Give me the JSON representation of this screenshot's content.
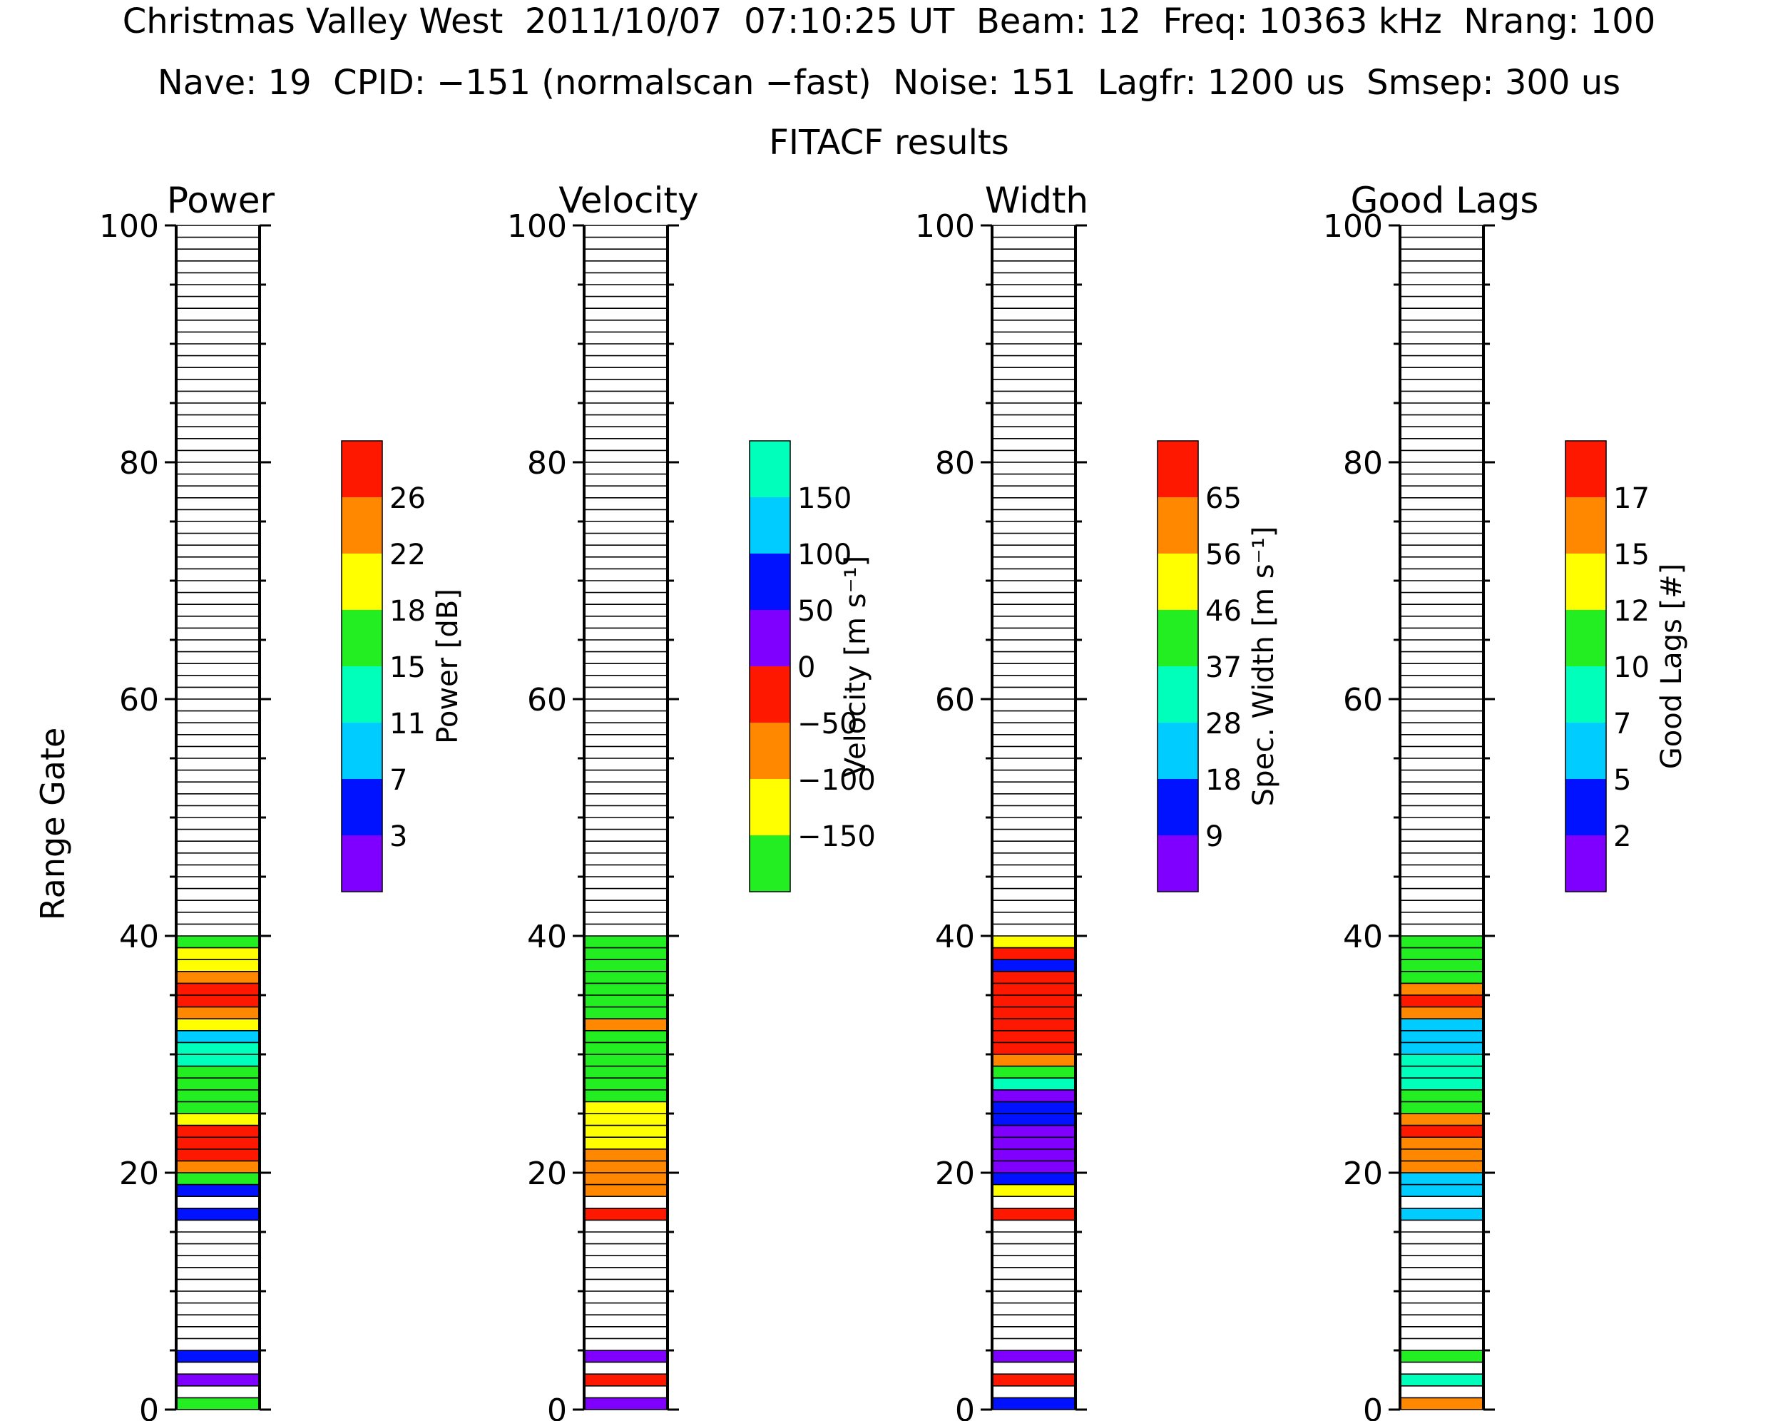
{
  "header": {
    "line1": "Christmas Valley West  2011/10/07  07:10:25 UT  Beam: 12  Freq: 10363 kHz  Nrang: 100",
    "line2": "Nave: 19  CPID: −151 (normalscan −fast)  Noise: 151  Lagfr: 1200 us  Smsep: 300 us",
    "line3": "FITACF results"
  },
  "y_axis_label": "Range Gate",
  "colors": {
    "purple": "#8000ff",
    "blue": "#0012ff",
    "cyan": "#00ccff",
    "teal": "#00ffbb",
    "green": "#22ee22",
    "yellow": "#ffff00",
    "orange": "#ff8800",
    "red": "#ff1800"
  },
  "chart_data": [
    {
      "type": "heatmap",
      "title": "Power",
      "ylabel": "Range Gate",
      "ylim": [
        0,
        100
      ],
      "yticks": [
        "0",
        "20",
        "40",
        "60",
        "80",
        "100"
      ],
      "colorbar": {
        "label": "Power [dB]",
        "colors": [
          "purple",
          "blue",
          "cyan",
          "teal",
          "green",
          "yellow",
          "orange",
          "red"
        ],
        "ticks": [
          "3",
          "7",
          "11",
          "15",
          "18",
          "22",
          "26"
        ]
      },
      "cells": [
        {
          "gate": 0,
          "color": "green"
        },
        {
          "gate": 2,
          "color": "purple"
        },
        {
          "gate": 4,
          "color": "blue"
        },
        {
          "gate": 16,
          "color": "blue"
        },
        {
          "gate": 18,
          "color": "blue"
        },
        {
          "gate": 19,
          "color": "green"
        },
        {
          "gate": 20,
          "color": "orange"
        },
        {
          "gate": 21,
          "color": "red"
        },
        {
          "gate": 22,
          "color": "red"
        },
        {
          "gate": 23,
          "color": "red"
        },
        {
          "gate": 24,
          "color": "yellow"
        },
        {
          "gate": 25,
          "color": "green"
        },
        {
          "gate": 26,
          "color": "green"
        },
        {
          "gate": 27,
          "color": "green"
        },
        {
          "gate": 28,
          "color": "green"
        },
        {
          "gate": 29,
          "color": "teal"
        },
        {
          "gate": 30,
          "color": "teal"
        },
        {
          "gate": 31,
          "color": "cyan"
        },
        {
          "gate": 32,
          "color": "yellow"
        },
        {
          "gate": 33,
          "color": "orange"
        },
        {
          "gate": 34,
          "color": "red"
        },
        {
          "gate": 35,
          "color": "red"
        },
        {
          "gate": 36,
          "color": "orange"
        },
        {
          "gate": 37,
          "color": "yellow"
        },
        {
          "gate": 38,
          "color": "yellow"
        },
        {
          "gate": 39,
          "color": "green"
        }
      ]
    },
    {
      "type": "heatmap",
      "title": "Velocity",
      "ylim": [
        0,
        100
      ],
      "yticks": [
        "0",
        "20",
        "40",
        "60",
        "80",
        "100"
      ],
      "colorbar": {
        "label": "Velocity [m s⁻¹]",
        "colors": [
          "green",
          "yellow",
          "orange",
          "red",
          "purple",
          "blue",
          "cyan",
          "teal"
        ],
        "ticks": [
          "−150",
          "−100",
          "−50",
          "0",
          "50",
          "100",
          "150"
        ]
      },
      "cells": [
        {
          "gate": 0,
          "color": "purple"
        },
        {
          "gate": 2,
          "color": "red"
        },
        {
          "gate": 4,
          "color": "purple"
        },
        {
          "gate": 16,
          "color": "red"
        },
        {
          "gate": 18,
          "color": "orange"
        },
        {
          "gate": 19,
          "color": "orange"
        },
        {
          "gate": 20,
          "color": "orange"
        },
        {
          "gate": 21,
          "color": "orange"
        },
        {
          "gate": 22,
          "color": "yellow"
        },
        {
          "gate": 23,
          "color": "yellow"
        },
        {
          "gate": 24,
          "color": "yellow"
        },
        {
          "gate": 25,
          "color": "yellow"
        },
        {
          "gate": 26,
          "color": "green"
        },
        {
          "gate": 27,
          "color": "green"
        },
        {
          "gate": 28,
          "color": "green"
        },
        {
          "gate": 29,
          "color": "green"
        },
        {
          "gate": 30,
          "color": "green"
        },
        {
          "gate": 31,
          "color": "green"
        },
        {
          "gate": 32,
          "color": "orange"
        },
        {
          "gate": 33,
          "color": "green"
        },
        {
          "gate": 34,
          "color": "green"
        },
        {
          "gate": 35,
          "color": "green"
        },
        {
          "gate": 36,
          "color": "green"
        },
        {
          "gate": 37,
          "color": "green"
        },
        {
          "gate": 38,
          "color": "green"
        },
        {
          "gate": 39,
          "color": "green"
        }
      ]
    },
    {
      "type": "heatmap",
      "title": "Width",
      "ylim": [
        0,
        100
      ],
      "yticks": [
        "0",
        "20",
        "40",
        "60",
        "80",
        "100"
      ],
      "colorbar": {
        "label": "Spec. Width [m s⁻¹]",
        "colors": [
          "purple",
          "blue",
          "cyan",
          "teal",
          "green",
          "yellow",
          "orange",
          "red"
        ],
        "ticks": [
          "9",
          "18",
          "28",
          "37",
          "46",
          "56",
          "65"
        ]
      },
      "cells": [
        {
          "gate": 0,
          "color": "blue"
        },
        {
          "gate": 2,
          "color": "red"
        },
        {
          "gate": 4,
          "color": "purple"
        },
        {
          "gate": 16,
          "color": "red"
        },
        {
          "gate": 18,
          "color": "yellow"
        },
        {
          "gate": 19,
          "color": "blue"
        },
        {
          "gate": 20,
          "color": "purple"
        },
        {
          "gate": 21,
          "color": "purple"
        },
        {
          "gate": 22,
          "color": "purple"
        },
        {
          "gate": 23,
          "color": "purple"
        },
        {
          "gate": 24,
          "color": "blue"
        },
        {
          "gate": 25,
          "color": "blue"
        },
        {
          "gate": 26,
          "color": "purple"
        },
        {
          "gate": 27,
          "color": "teal"
        },
        {
          "gate": 28,
          "color": "green"
        },
        {
          "gate": 29,
          "color": "orange"
        },
        {
          "gate": 30,
          "color": "red"
        },
        {
          "gate": 31,
          "color": "red"
        },
        {
          "gate": 32,
          "color": "red"
        },
        {
          "gate": 33,
          "color": "red"
        },
        {
          "gate": 34,
          "color": "red"
        },
        {
          "gate": 35,
          "color": "red"
        },
        {
          "gate": 36,
          "color": "red"
        },
        {
          "gate": 37,
          "color": "blue"
        },
        {
          "gate": 38,
          "color": "red"
        },
        {
          "gate": 39,
          "color": "yellow"
        }
      ]
    },
    {
      "type": "heatmap",
      "title": "Good Lags",
      "ylim": [
        0,
        100
      ],
      "yticks": [
        "0",
        "20",
        "40",
        "60",
        "80",
        "100"
      ],
      "colorbar": {
        "label": "Good Lags [#]",
        "colors": [
          "purple",
          "blue",
          "cyan",
          "teal",
          "green",
          "yellow",
          "orange",
          "red"
        ],
        "ticks": [
          "2",
          "5",
          "7",
          "10",
          "12",
          "15",
          "17"
        ]
      },
      "cells": [
        {
          "gate": 0,
          "color": "orange"
        },
        {
          "gate": 2,
          "color": "teal"
        },
        {
          "gate": 4,
          "color": "green"
        },
        {
          "gate": 16,
          "color": "cyan"
        },
        {
          "gate": 18,
          "color": "cyan"
        },
        {
          "gate": 19,
          "color": "cyan"
        },
        {
          "gate": 20,
          "color": "orange"
        },
        {
          "gate": 21,
          "color": "orange"
        },
        {
          "gate": 22,
          "color": "orange"
        },
        {
          "gate": 23,
          "color": "red"
        },
        {
          "gate": 24,
          "color": "orange"
        },
        {
          "gate": 25,
          "color": "green"
        },
        {
          "gate": 26,
          "color": "green"
        },
        {
          "gate": 27,
          "color": "teal"
        },
        {
          "gate": 28,
          "color": "teal"
        },
        {
          "gate": 29,
          "color": "teal"
        },
        {
          "gate": 30,
          "color": "cyan"
        },
        {
          "gate": 31,
          "color": "cyan"
        },
        {
          "gate": 32,
          "color": "cyan"
        },
        {
          "gate": 33,
          "color": "orange"
        },
        {
          "gate": 34,
          "color": "red"
        },
        {
          "gate": 35,
          "color": "orange"
        },
        {
          "gate": 36,
          "color": "green"
        },
        {
          "gate": 37,
          "color": "green"
        },
        {
          "gate": 38,
          "color": "green"
        },
        {
          "gate": 39,
          "color": "green"
        }
      ]
    }
  ]
}
